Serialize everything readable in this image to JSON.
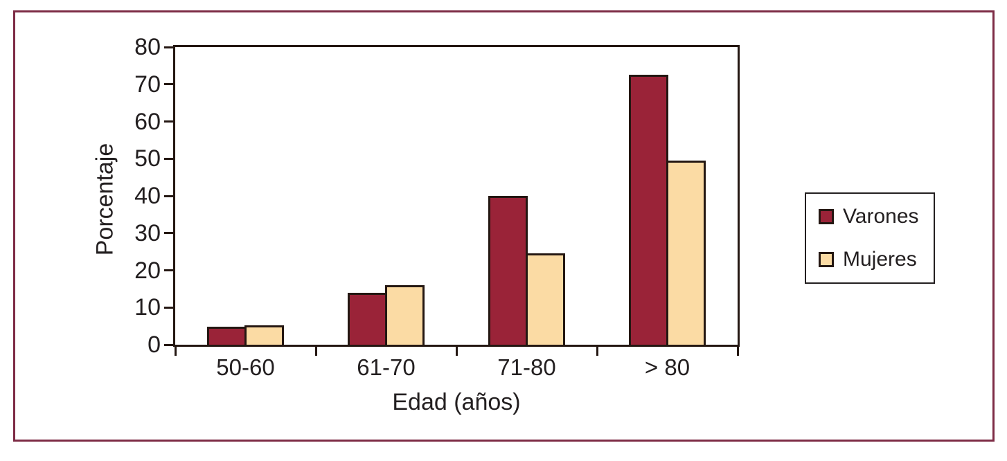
{
  "figure": {
    "background_color": "#ffffff",
    "border_color": "#7d2b45",
    "axis_color": "#241712",
    "text_color": "#231f20"
  },
  "chart_data": {
    "type": "bar",
    "categories": [
      "50-60",
      "61-70",
      "71-80",
      "> 80"
    ],
    "series": [
      {
        "name": "Varones",
        "color": "#9a2338",
        "values": [
          4.8,
          14,
          40,
          72.5
        ]
      },
      {
        "name": "Mujeres",
        "color": "#fbdba4",
        "values": [
          5.3,
          16,
          24.5,
          49.5
        ]
      }
    ],
    "xlabel": "Edad (años)",
    "ylabel": "Porcentaje",
    "ylim": [
      0,
      80
    ],
    "ytick_step": 10,
    "y_ticks": [
      0,
      10,
      20,
      30,
      40,
      50,
      60,
      70,
      80
    ],
    "grid": false,
    "legend_position": "right",
    "bar_outline_color": "#241712"
  }
}
